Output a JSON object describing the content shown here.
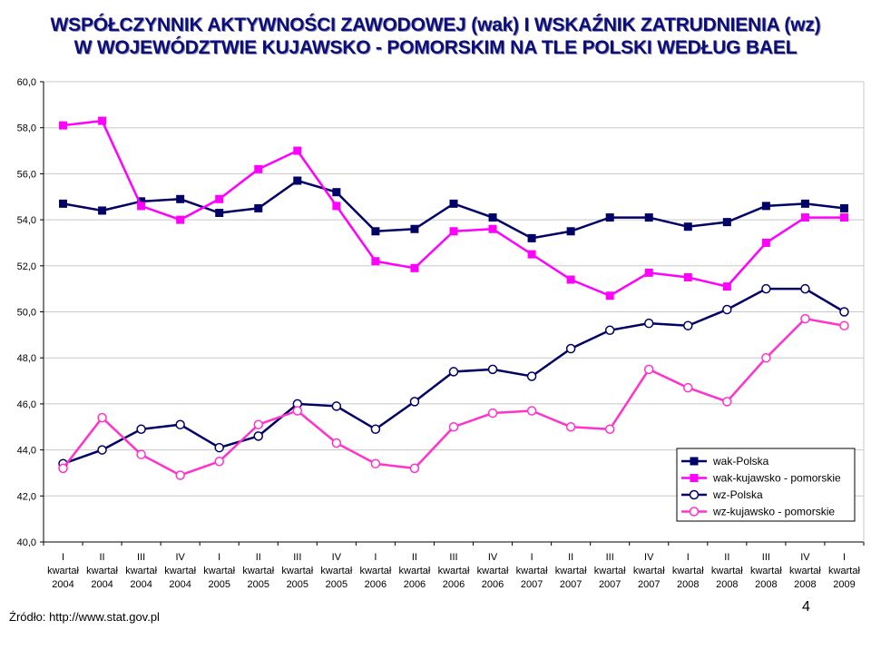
{
  "title_line1": "WSPÓŁCZYNNIK AKTYWNOŚCI ZAWODOWEJ (wak) I WSKAŹNIK ZATRUDNIENIA (wz)",
  "title_line2": "W WOJEWÓDZTWIE KUJAWSKO - POMORSKIM NA TLE POLSKI WEDŁUG BAEL",
  "source": "Źródło: http://www.stat.gov.pl",
  "page_number": "4",
  "chart_data": {
    "type": "line",
    "ylim": [
      40,
      60
    ],
    "yticks": [
      "40,0",
      "42,0",
      "44,0",
      "46,0",
      "48,0",
      "50,0",
      "52,0",
      "54,0",
      "56,0",
      "58,0",
      "60,0"
    ],
    "ytick_values": [
      40,
      42,
      44,
      46,
      48,
      50,
      52,
      54,
      56,
      58,
      60
    ],
    "grid": "horizontal",
    "legend_position": "right",
    "categories": [
      [
        "I",
        "kwartał",
        "2004"
      ],
      [
        "II",
        "kwartał",
        "2004"
      ],
      [
        "III",
        "kwartał",
        "2004"
      ],
      [
        "IV",
        "kwartał",
        "2004"
      ],
      [
        "I",
        "kwartał",
        "2005"
      ],
      [
        "II",
        "kwartał",
        "2005"
      ],
      [
        "III",
        "kwartał",
        "2005"
      ],
      [
        "IV",
        "kwartał",
        "2005"
      ],
      [
        "I",
        "kwartał",
        "2006"
      ],
      [
        "II",
        "kwartał",
        "2006"
      ],
      [
        "III",
        "kwartał",
        "2006"
      ],
      [
        "IV",
        "kwartał",
        "2006"
      ],
      [
        "I",
        "kwartał",
        "2007"
      ],
      [
        "II",
        "kwartał",
        "2007"
      ],
      [
        "III",
        "kwartał",
        "2007"
      ],
      [
        "IV",
        "kwartał",
        "2007"
      ],
      [
        "I",
        "kwartał",
        "2008"
      ],
      [
        "II",
        "kwartał",
        "2008"
      ],
      [
        "III",
        "kwartał",
        "2008"
      ],
      [
        "IV",
        "kwartał",
        "2008"
      ],
      [
        "I",
        "kwartał",
        "2009"
      ]
    ],
    "series": [
      {
        "name": "wak-Polska",
        "color": "#000066",
        "marker": "square-filled",
        "values": [
          54.7,
          54.4,
          54.8,
          54.9,
          54.3,
          54.5,
          55.7,
          55.2,
          53.5,
          53.6,
          54.7,
          54.1,
          53.2,
          53.5,
          54.1,
          54.1,
          53.7,
          53.9,
          54.6,
          54.7,
          54.5
        ]
      },
      {
        "name": "wak-kujawsko - pomorskie",
        "color": "#ff00ff",
        "marker": "square-filled",
        "values": [
          58.1,
          58.3,
          54.6,
          54.0,
          54.9,
          56.2,
          57.0,
          54.6,
          52.2,
          51.9,
          53.5,
          53.6,
          52.5,
          51.4,
          50.7,
          51.7,
          51.5,
          51.1,
          53.0,
          54.1,
          54.1
        ]
      },
      {
        "name": "wz-Polska",
        "color": "#000066",
        "marker": "circle-open",
        "values": [
          43.4,
          44.0,
          44.9,
          45.1,
          44.1,
          44.6,
          46.0,
          45.9,
          44.9,
          46.1,
          47.4,
          47.5,
          47.2,
          48.4,
          49.2,
          49.5,
          49.4,
          50.1,
          51.0,
          51.0,
          50.0
        ]
      },
      {
        "name": "wz-kujawsko - pomorskie",
        "color": "#ff33cc",
        "marker": "circle-open",
        "values": [
          43.2,
          45.4,
          43.8,
          42.9,
          43.5,
          45.1,
          45.7,
          44.3,
          43.4,
          43.2,
          45.0,
          45.6,
          45.7,
          45.0,
          44.9,
          47.5,
          46.7,
          46.1,
          48.0,
          49.7,
          49.4
        ]
      }
    ]
  }
}
